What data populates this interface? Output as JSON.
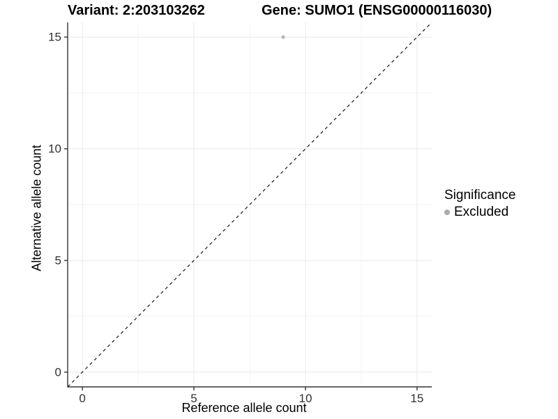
{
  "chart_data": {
    "type": "scatter",
    "titles": {
      "variant": "Variant: 2:203103262",
      "gene": "Gene: SUMO1 (ENSG00000116030)"
    },
    "xlabel": "Reference allele count",
    "ylabel": "Alternative allele count",
    "xlim": [
      -0.66,
      15.66
    ],
    "ylim": [
      -0.66,
      15.66
    ],
    "xticks": [
      0,
      5,
      10,
      15
    ],
    "yticks": [
      0,
      5,
      10,
      15
    ],
    "x_minor_gridlines": [
      2.5,
      7.5,
      12.5
    ],
    "y_minor_gridlines": [
      2.5,
      7.5,
      12.5
    ],
    "grid": true,
    "points": [
      {
        "x": 9,
        "y": 15,
        "series": "Excluded"
      }
    ],
    "identity_line": {
      "style": "dashed",
      "slope": 1,
      "intercept": 0
    },
    "legend": {
      "title": "Significance",
      "position": "right",
      "entries": [
        {
          "label": "Excluded",
          "color": "#aaaaaa"
        }
      ]
    },
    "colors": {
      "point": "#b8b8b8",
      "identity_line": "#000000",
      "axis_line": "#333333",
      "tick_mark": "#333333",
      "tick_label": "#303030",
      "grid_major": "#e8e8e8",
      "grid_minor": "#f4f4f4",
      "text": "#000000",
      "background": "#ffffff"
    }
  }
}
